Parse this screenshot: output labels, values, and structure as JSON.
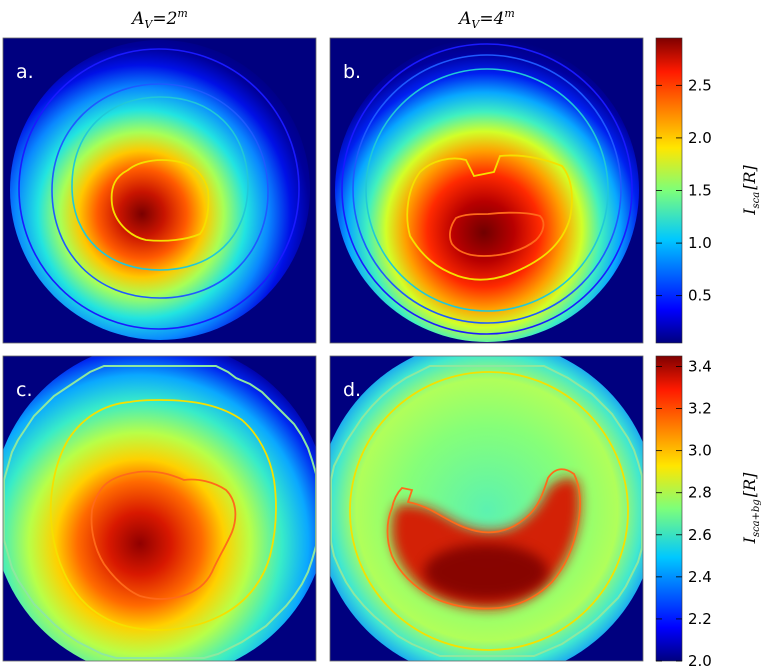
{
  "chart_data": [
    {
      "type": "heatmap",
      "panel": "a.",
      "column_title": {
        "base": "A",
        "sub": "V",
        "eq": "=2",
        "sup": "m"
      },
      "peak": {
        "cx": 0.44,
        "cy": 0.58,
        "value": 2.95
      },
      "contours": [
        0.5,
        1.0,
        1.5,
        2.0
      ],
      "colorbar": "top"
    },
    {
      "type": "heatmap",
      "panel": "b.",
      "column_title": {
        "base": "A",
        "sub": "V",
        "eq": "=4",
        "sup": "m"
      },
      "peak": {
        "cx": 0.49,
        "cy": 0.65,
        "value": 2.95
      },
      "contours": [
        0.5,
        1.0,
        1.5,
        2.0,
        2.5
      ],
      "colorbar": "top"
    },
    {
      "type": "heatmap",
      "panel": "c.",
      "peak": {
        "cx": 0.44,
        "cy": 0.6,
        "value": 3.4
      },
      "contours": [
        2.6,
        3.0,
        3.2
      ],
      "colorbar": "bottom"
    },
    {
      "type": "heatmap",
      "panel": "d.",
      "peak": {
        "cx": 0.5,
        "cy": 0.72,
        "value": 3.4
      },
      "contours": [
        2.6,
        3.0,
        3.2
      ],
      "colorbar": "bottom"
    }
  ],
  "colorbars": {
    "top": {
      "label_main": "I",
      "label_sub": "sca",
      "label_rest": "[R]",
      "range": [
        0.05,
        2.95
      ],
      "ticks": [
        "0.5",
        "1.0",
        "1.5",
        "2.0",
        "2.5"
      ],
      "tick_values": [
        0.5,
        1.0,
        1.5,
        2.0,
        2.5
      ]
    },
    "bottom": {
      "label_main": "I",
      "label_sub": "sca+bg",
      "label_rest": "[R]",
      "range": [
        2.0,
        3.45
      ],
      "ticks": [
        "2.0",
        "2.2",
        "2.4",
        "2.6",
        "2.8",
        "3.0",
        "3.2",
        "3.4"
      ],
      "tick_values": [
        2.0,
        2.2,
        2.4,
        2.6,
        2.8,
        3.0,
        3.2,
        3.4
      ]
    }
  },
  "colors": {
    "background": "#00007f",
    "contour_low": "#1a1aff",
    "contour_mid": "#21c8d8",
    "contour_yellow": "#f5e000",
    "contour_orange": "#ff6a1a",
    "contour_edge": "#8ee8a0"
  }
}
